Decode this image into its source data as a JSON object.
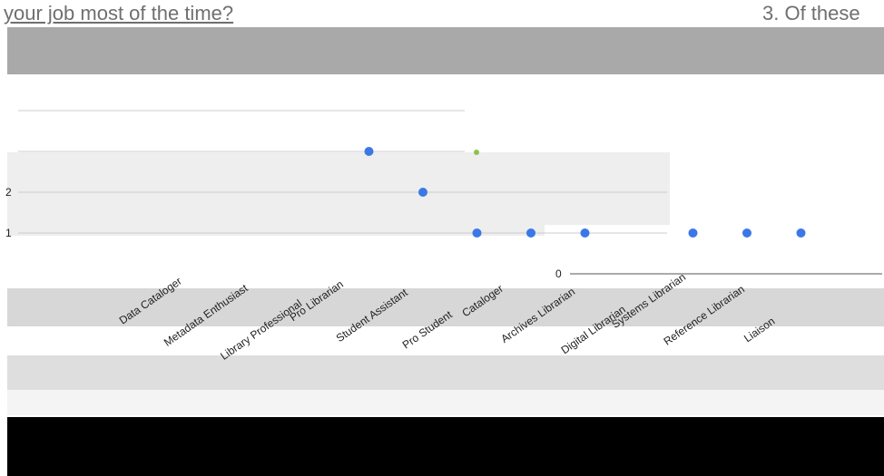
{
  "header": {
    "question_left": "your job most of the time?",
    "question_right": "3. Of these"
  },
  "colors": {
    "series": "#3b78e7",
    "highlight": "#8bc34a",
    "gridline": "#cccccc"
  },
  "chart_data": {
    "type": "scatter",
    "title": "",
    "xlabel": "",
    "ylabel": "",
    "ylim": [
      0,
      3
    ],
    "y_ticks": [
      "2",
      "1"
    ],
    "right_axis_ticks": [
      "0"
    ],
    "categories": [
      "Data Cataloger",
      "Metadata Enthusiast",
      "Library Professional",
      "Pro Librarian",
      "Student Assistant",
      "Pro Student",
      "Cataloger",
      "Archives Librarian",
      "Digital Librarian",
      "Systems Librarian",
      "Reference Librarian",
      "Liaison"
    ],
    "series": [
      {
        "values": [
          null,
          null,
          null,
          3,
          2,
          1,
          1,
          1,
          null,
          1,
          1,
          1
        ]
      }
    ]
  }
}
